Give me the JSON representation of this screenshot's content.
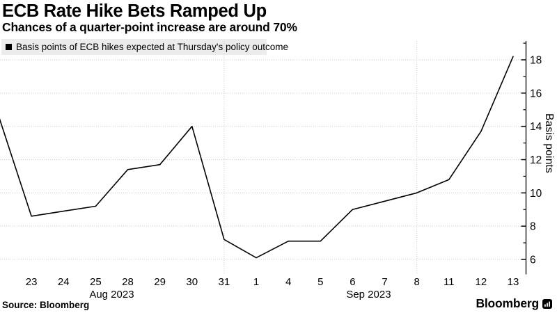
{
  "header": {
    "title": "ECB Rate Hike Bets Ramped Up",
    "subtitle": "Chances of a quarter-point increase are around 70%"
  },
  "legend": {
    "label": "Basis points of ECB hikes expected at Thursday's policy outcome"
  },
  "axis": {
    "y_label": "Basis points"
  },
  "footer": {
    "source": "Source: Bloomberg",
    "brand": "Bloomberg"
  },
  "colors": {
    "line": "#000000",
    "legend_bg": "#ececec",
    "grid": "#c9c9c9"
  },
  "chart_data": {
    "type": "line",
    "title": "ECB Rate Hike Bets Ramped Up",
    "subtitle": "Chances of a quarter-point increase are around 70%",
    "ylabel": "Basis points",
    "yticks": [
      6,
      8,
      10,
      12,
      14,
      16,
      18
    ],
    "minor_yticks": [
      7,
      9,
      11,
      13,
      15,
      17,
      19
    ],
    "ylim": [
      5.1,
      19.1
    ],
    "grid": "dotted",
    "x_tick_labels": [
      "23",
      "24",
      "25",
      "28",
      "29",
      "30",
      "31",
      "1",
      "4",
      "5",
      "6",
      "7",
      "8",
      "11",
      "12",
      "13"
    ],
    "month_labels": [
      {
        "text": "Aug 2023",
        "between": [
          "25",
          "28"
        ]
      },
      {
        "text": "Sep 2023",
        "between": [
          "6",
          "7"
        ]
      }
    ],
    "vertical_gridlines": [
      "31",
      "8"
    ],
    "series": [
      {
        "name": "Basis points of ECB hikes expected at Thursday's policy outcome",
        "color": "#000000",
        "points": [
          {
            "date": "Aug 22",
            "value": 14.5
          },
          {
            "date": "Aug 23",
            "value": 8.6
          },
          {
            "date": "Aug 24",
            "value": 8.9
          },
          {
            "date": "Aug 25",
            "value": 9.2
          },
          {
            "date": "Aug 28",
            "value": 11.4
          },
          {
            "date": "Aug 29",
            "value": 11.7
          },
          {
            "date": "Aug 30",
            "value": 14.0
          },
          {
            "date": "Aug 31",
            "value": 7.2
          },
          {
            "date": "Sep 1",
            "value": 6.1
          },
          {
            "date": "Sep 4",
            "value": 7.1
          },
          {
            "date": "Sep 5",
            "value": 7.1
          },
          {
            "date": "Sep 6",
            "value": 9.0
          },
          {
            "date": "Sep 7",
            "value": 9.5
          },
          {
            "date": "Sep 8",
            "value": 10.0
          },
          {
            "date": "Sep 11",
            "value": 10.8
          },
          {
            "date": "Sep 12",
            "value": 13.7
          },
          {
            "date": "Sep 13",
            "value": 18.2
          }
        ]
      }
    ]
  }
}
